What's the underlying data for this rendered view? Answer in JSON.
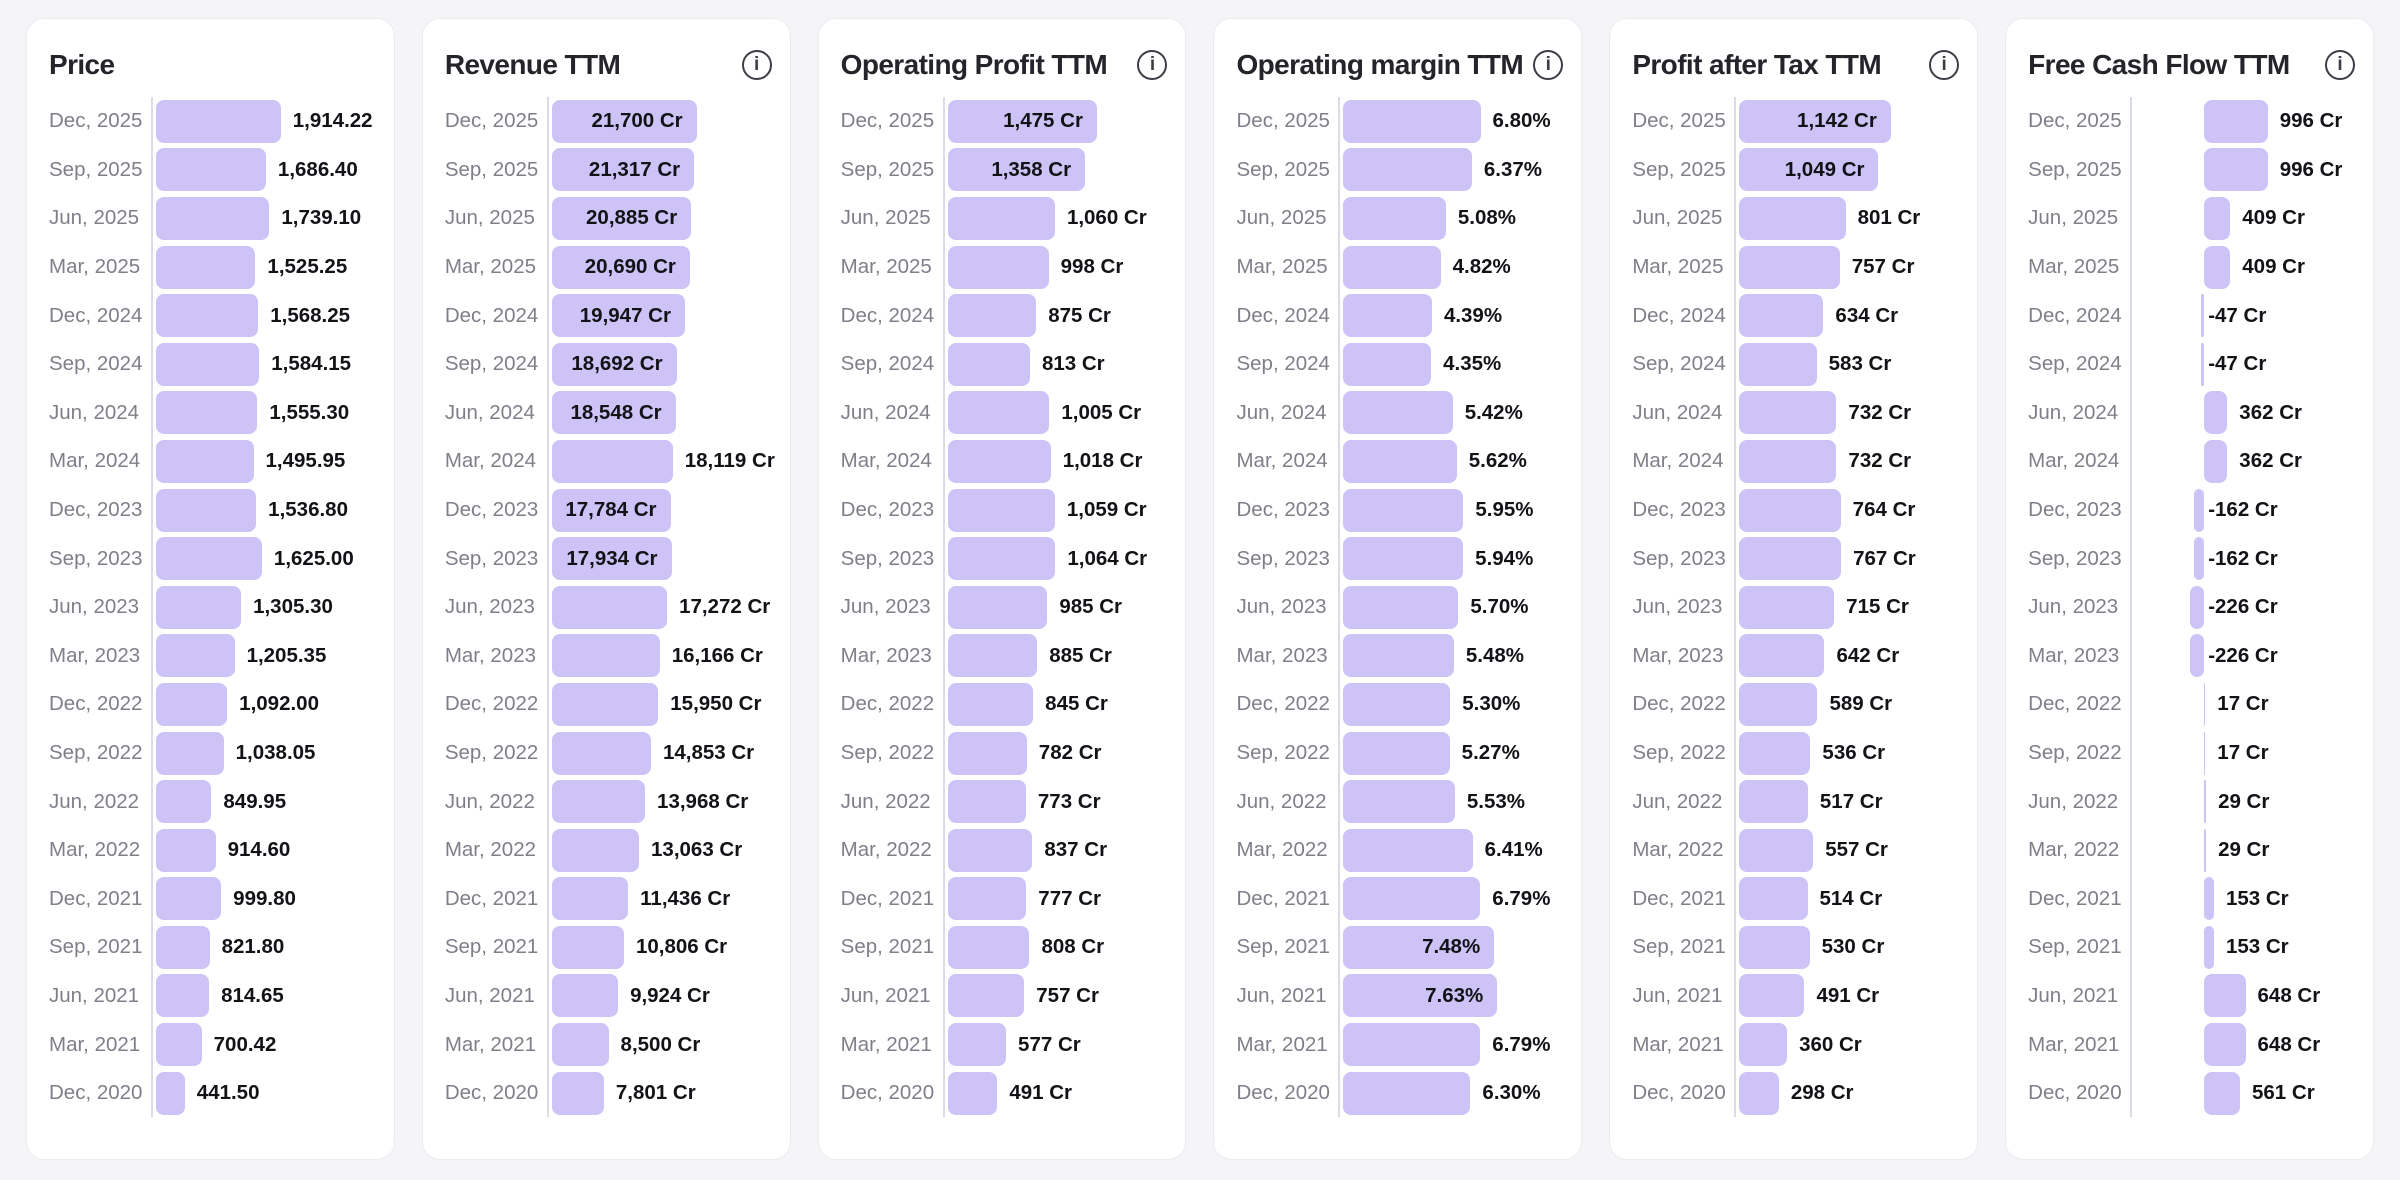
{
  "icons": {
    "info_glyph": "i"
  },
  "colors": {
    "page_background": "#f5f5f7",
    "card_background": "#ffffff",
    "card_border": "#ebebf1",
    "bar_fill": "#cdc3f6",
    "axis_line": "#dbdbe6",
    "title_text": "#24242b",
    "date_text": "#7f7f89",
    "value_text": "#121217"
  },
  "chart_data": [
    {
      "type": "bar",
      "orientation": "horizontal",
      "id": "price",
      "title": "Price",
      "info_icon": false,
      "unit": "",
      "grid": false,
      "legend": false,
      "xlim": [
        0,
        1914.22
      ],
      "scale_max": 1914.22,
      "max_bar_pct": 56,
      "zero_offset_pct": 0,
      "categories": [
        "Dec, 2025",
        "Sep, 2025",
        "Jun, 2025",
        "Mar, 2025",
        "Dec, 2024",
        "Sep, 2024",
        "Jun, 2024",
        "Mar, 2024",
        "Dec, 2023",
        "Sep, 2023",
        "Jun, 2023",
        "Mar, 2023",
        "Dec, 2022",
        "Sep, 2022",
        "Jun, 2022",
        "Mar, 2022",
        "Dec, 2021",
        "Sep, 2021",
        "Jun, 2021",
        "Mar, 2021",
        "Dec, 2020"
      ],
      "values": [
        1914.22,
        1686.4,
        1739.1,
        1525.25,
        1568.25,
        1584.15,
        1555.3,
        1495.95,
        1536.8,
        1625.0,
        1305.3,
        1205.35,
        1092.0,
        1038.05,
        849.95,
        914.6,
        999.8,
        821.8,
        814.65,
        700.42,
        441.5
      ],
      "labels": [
        "1,914.22",
        "1,686.40",
        "1,739.10",
        "1,525.25",
        "1,568.25",
        "1,584.15",
        "1,555.30",
        "1,495.95",
        "1,536.80",
        "1,625.00",
        "1,305.30",
        "1,205.35",
        "1,092.00",
        "1,038.05",
        "849.95",
        "914.60",
        "999.80",
        "821.80",
        "814.65",
        "700.42",
        "441.50"
      ],
      "label_inside": [
        false,
        false,
        false,
        false,
        false,
        false,
        false,
        false,
        false,
        false,
        false,
        false,
        false,
        false,
        false,
        false,
        false,
        false,
        false,
        false,
        false
      ]
    },
    {
      "type": "bar",
      "orientation": "horizontal",
      "id": "revenue-ttm",
      "title": "Revenue TTM",
      "info_icon": true,
      "unit": "Cr",
      "grid": false,
      "legend": false,
      "xlim": [
        0,
        21700
      ],
      "scale_max": 21700,
      "max_bar_pct": 65,
      "zero_offset_pct": 0,
      "categories": [
        "Dec, 2025",
        "Sep, 2025",
        "Jun, 2025",
        "Mar, 2025",
        "Dec, 2024",
        "Sep, 2024",
        "Jun, 2024",
        "Mar, 2024",
        "Dec, 2023",
        "Sep, 2023",
        "Jun, 2023",
        "Mar, 2023",
        "Dec, 2022",
        "Sep, 2022",
        "Jun, 2022",
        "Mar, 2022",
        "Dec, 2021",
        "Sep, 2021",
        "Jun, 2021",
        "Mar, 2021",
        "Dec, 2020"
      ],
      "values": [
        21700,
        21317,
        20885,
        20690,
        19947,
        18692,
        18548,
        18119,
        17784,
        17934,
        17272,
        16166,
        15950,
        14853,
        13968,
        13063,
        11436,
        10806,
        9924,
        8500,
        7801
      ],
      "labels": [
        "21,700 Cr",
        "21,317 Cr",
        "20,885 Cr",
        "20,690 Cr",
        "19,947 Cr",
        "18,692 Cr",
        "18,548 Cr",
        "18,119 Cr",
        "17,784 Cr",
        "17,934 Cr",
        "17,272 Cr",
        "16,166 Cr",
        "15,950 Cr",
        "14,853 Cr",
        "13,968 Cr",
        "13,063 Cr",
        "11,436 Cr",
        "10,806 Cr",
        "9,924 Cr",
        "8,500 Cr",
        "7,801 Cr"
      ],
      "label_inside": [
        true,
        true,
        true,
        true,
        true,
        true,
        true,
        false,
        true,
        true,
        false,
        false,
        false,
        false,
        false,
        false,
        false,
        false,
        false,
        false,
        false
      ]
    },
    {
      "type": "bar",
      "orientation": "horizontal",
      "id": "operating-profit-ttm",
      "title": "Operating Profit TTM",
      "info_icon": true,
      "unit": "Cr",
      "grid": false,
      "legend": false,
      "xlim": [
        0,
        1475
      ],
      "scale_max": 1475,
      "max_bar_pct": 67,
      "zero_offset_pct": 0,
      "categories": [
        "Dec, 2025",
        "Sep, 2025",
        "Jun, 2025",
        "Mar, 2025",
        "Dec, 2024",
        "Sep, 2024",
        "Jun, 2024",
        "Mar, 2024",
        "Dec, 2023",
        "Sep, 2023",
        "Jun, 2023",
        "Mar, 2023",
        "Dec, 2022",
        "Sep, 2022",
        "Jun, 2022",
        "Mar, 2022",
        "Dec, 2021",
        "Sep, 2021",
        "Jun, 2021",
        "Mar, 2021",
        "Dec, 2020"
      ],
      "values": [
        1475,
        1358,
        1060,
        998,
        875,
        813,
        1005,
        1018,
        1059,
        1064,
        985,
        885,
        845,
        782,
        773,
        837,
        777,
        808,
        757,
        577,
        491
      ],
      "labels": [
        "1,475 Cr",
        "1,358 Cr",
        "1,060 Cr",
        "998 Cr",
        "875 Cr",
        "813 Cr",
        "1,005 Cr",
        "1,018 Cr",
        "1,059 Cr",
        "1,064 Cr",
        "985 Cr",
        "885 Cr",
        "845 Cr",
        "782 Cr",
        "773 Cr",
        "837 Cr",
        "777 Cr",
        "808 Cr",
        "757 Cr",
        "577 Cr",
        "491 Cr"
      ],
      "label_inside": [
        true,
        true,
        false,
        false,
        false,
        false,
        false,
        false,
        false,
        false,
        false,
        false,
        false,
        false,
        false,
        false,
        false,
        false,
        false,
        false,
        false
      ]
    },
    {
      "type": "bar",
      "orientation": "horizontal",
      "id": "operating-margin-ttm",
      "title": "Operating margin TTM",
      "info_icon": true,
      "unit": "%",
      "grid": false,
      "legend": false,
      "xlim": [
        0,
        7.63
      ],
      "scale_max": 7.63,
      "max_bar_pct": 69,
      "zero_offset_pct": 0,
      "categories": [
        "Dec, 2025",
        "Sep, 2025",
        "Jun, 2025",
        "Mar, 2025",
        "Dec, 2024",
        "Sep, 2024",
        "Jun, 2024",
        "Mar, 2024",
        "Dec, 2023",
        "Sep, 2023",
        "Jun, 2023",
        "Mar, 2023",
        "Dec, 2022",
        "Sep, 2022",
        "Jun, 2022",
        "Mar, 2022",
        "Dec, 2021",
        "Sep, 2021",
        "Jun, 2021",
        "Mar, 2021",
        "Dec, 2020"
      ],
      "values": [
        6.8,
        6.37,
        5.08,
        4.82,
        4.39,
        4.35,
        5.42,
        5.62,
        5.95,
        5.94,
        5.7,
        5.48,
        5.3,
        5.27,
        5.53,
        6.41,
        6.79,
        7.48,
        7.63,
        6.79,
        6.3
      ],
      "labels": [
        "6.80%",
        "6.37%",
        "5.08%",
        "4.82%",
        "4.39%",
        "4.35%",
        "5.42%",
        "5.62%",
        "5.95%",
        "5.94%",
        "5.70%",
        "5.48%",
        "5.30%",
        "5.27%",
        "5.53%",
        "6.41%",
        "6.79%",
        "7.48%",
        "7.63%",
        "6.79%",
        "6.30%"
      ],
      "label_inside": [
        false,
        false,
        false,
        false,
        false,
        false,
        false,
        false,
        false,
        false,
        false,
        false,
        false,
        false,
        false,
        false,
        false,
        true,
        true,
        false,
        false
      ]
    },
    {
      "type": "bar",
      "orientation": "horizontal",
      "id": "profit-after-tax-ttm",
      "title": "Profit after Tax TTM",
      "info_icon": true,
      "unit": "Cr",
      "grid": false,
      "legend": false,
      "xlim": [
        0,
        1142
      ],
      "scale_max": 1142,
      "max_bar_pct": 68,
      "zero_offset_pct": 0,
      "categories": [
        "Dec, 2025",
        "Sep, 2025",
        "Jun, 2025",
        "Mar, 2025",
        "Dec, 2024",
        "Sep, 2024",
        "Jun, 2024",
        "Mar, 2024",
        "Dec, 2023",
        "Sep, 2023",
        "Jun, 2023",
        "Mar, 2023",
        "Dec, 2022",
        "Sep, 2022",
        "Jun, 2022",
        "Mar, 2022",
        "Dec, 2021",
        "Sep, 2021",
        "Jun, 2021",
        "Mar, 2021",
        "Dec, 2020"
      ],
      "values": [
        1142,
        1049,
        801,
        757,
        634,
        583,
        732,
        732,
        764,
        767,
        715,
        642,
        589,
        536,
        517,
        557,
        514,
        530,
        491,
        360,
        298
      ],
      "labels": [
        "1,142 Cr",
        "1,049 Cr",
        "801 Cr",
        "757 Cr",
        "634 Cr",
        "583 Cr",
        "732 Cr",
        "732 Cr",
        "764 Cr",
        "767 Cr",
        "715 Cr",
        "642 Cr",
        "589 Cr",
        "536 Cr",
        "517 Cr",
        "557 Cr",
        "514 Cr",
        "530 Cr",
        "491 Cr",
        "360 Cr",
        "298 Cr"
      ],
      "label_inside": [
        true,
        true,
        false,
        false,
        false,
        false,
        false,
        false,
        false,
        false,
        false,
        false,
        false,
        false,
        false,
        false,
        false,
        false,
        false,
        false,
        false
      ]
    },
    {
      "type": "bar",
      "orientation": "horizontal",
      "id": "free-cash-flow-ttm",
      "title": "Free Cash Flow TTM",
      "info_icon": true,
      "unit": "Cr",
      "grid": false,
      "legend": false,
      "xlim": [
        -226,
        996
      ],
      "scale_max": 996,
      "max_bar_pct": 28.5,
      "zero_offset_pct": 31,
      "categories": [
        "Dec, 2025",
        "Sep, 2025",
        "Jun, 2025",
        "Mar, 2025",
        "Dec, 2024",
        "Sep, 2024",
        "Jun, 2024",
        "Mar, 2024",
        "Dec, 2023",
        "Sep, 2023",
        "Jun, 2023",
        "Mar, 2023",
        "Dec, 2022",
        "Sep, 2022",
        "Jun, 2022",
        "Mar, 2022",
        "Dec, 2021",
        "Sep, 2021",
        "Jun, 2021",
        "Mar, 2021",
        "Dec, 2020"
      ],
      "values": [
        996,
        996,
        409,
        409,
        -47,
        -47,
        362,
        362,
        -162,
        -162,
        -226,
        -226,
        17,
        17,
        29,
        29,
        153,
        153,
        648,
        648,
        561
      ],
      "labels": [
        "996 Cr",
        "996 Cr",
        "409 Cr",
        "409 Cr",
        "-47 Cr",
        "-47 Cr",
        "362 Cr",
        "362 Cr",
        "-162 Cr",
        "-162 Cr",
        "-226 Cr",
        "-226 Cr",
        "17 Cr",
        "17 Cr",
        "29 Cr",
        "29 Cr",
        "153 Cr",
        "153 Cr",
        "648 Cr",
        "648 Cr",
        "561 Cr"
      ],
      "label_inside": [
        false,
        false,
        false,
        false,
        false,
        false,
        false,
        false,
        false,
        false,
        false,
        false,
        false,
        false,
        false,
        false,
        false,
        false,
        false,
        false,
        false
      ]
    }
  ]
}
